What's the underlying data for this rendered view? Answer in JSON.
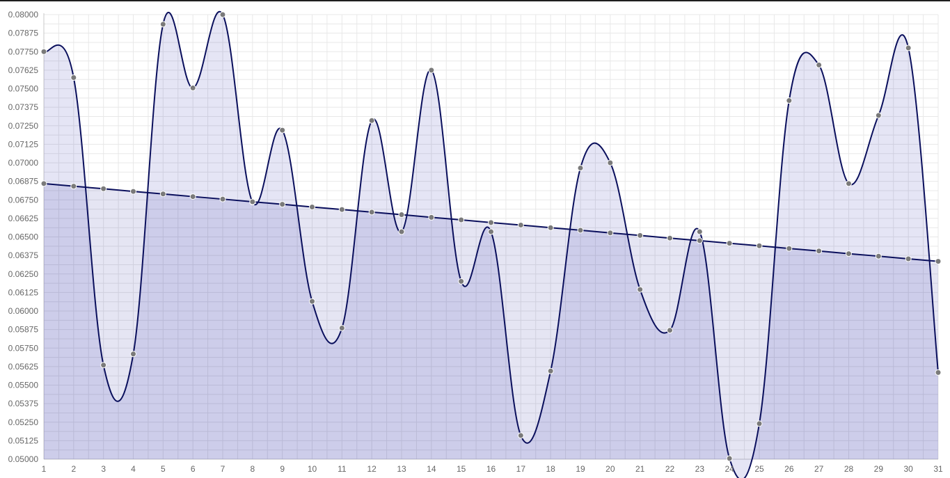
{
  "chart_data": {
    "type": "area",
    "title": "",
    "xlabel": "",
    "ylabel": "",
    "categories": [
      "1",
      "2",
      "3",
      "4",
      "5",
      "6",
      "7",
      "8",
      "9",
      "10",
      "11",
      "12",
      "13",
      "14",
      "15",
      "16",
      "17",
      "18",
      "19",
      "20",
      "21",
      "22",
      "23",
      "24",
      "25",
      "26",
      "27",
      "28",
      "29",
      "30",
      "31"
    ],
    "ylim": [
      0.05,
      0.08
    ],
    "y_ticks": [
      "0.05000",
      "0.05125",
      "0.05250",
      "0.05375",
      "0.05500",
      "0.05625",
      "0.05750",
      "0.05875",
      "0.06000",
      "0.06125",
      "0.06250",
      "0.06375",
      "0.06500",
      "0.06625",
      "0.06750",
      "0.06875",
      "0.07000",
      "0.07125",
      "0.07250",
      "0.07375",
      "0.07500",
      "0.07625",
      "0.07750",
      "0.07875",
      "0.08000"
    ],
    "grid": true,
    "legend": "none",
    "series": [
      {
        "role": "values",
        "color": "#0a0f5c",
        "fill": "rgba(0,0,160,0.10)",
        "values": [
          0.0775,
          0.07575,
          0.05635,
          0.0571,
          0.07935,
          0.07505,
          0.08,
          0.06735,
          0.0722,
          0.06065,
          0.05885,
          0.07285,
          0.06535,
          0.07625,
          0.062,
          0.06535,
          0.0516,
          0.05595,
          0.06965,
          0.07,
          0.06145,
          0.0587,
          0.06535,
          0.05005,
          0.0524,
          0.0742,
          0.0766,
          0.0686,
          0.0732,
          0.07775,
          0.05585
        ]
      },
      {
        "role": "trend",
        "color": "#0a0f5c",
        "fill": "rgba(0,0,140,0.10)",
        "values": [
          0.0686,
          0.06842,
          0.06825,
          0.06807,
          0.0679,
          0.06772,
          0.06755,
          0.06737,
          0.0672,
          0.06702,
          0.06685,
          0.06667,
          0.0665,
          0.06632,
          0.06615,
          0.06597,
          0.0658,
          0.06562,
          0.06545,
          0.06527,
          0.0651,
          0.06492,
          0.06475,
          0.06457,
          0.0644,
          0.06422,
          0.06405,
          0.06387,
          0.0637,
          0.06352,
          0.06335
        ]
      }
    ]
  }
}
